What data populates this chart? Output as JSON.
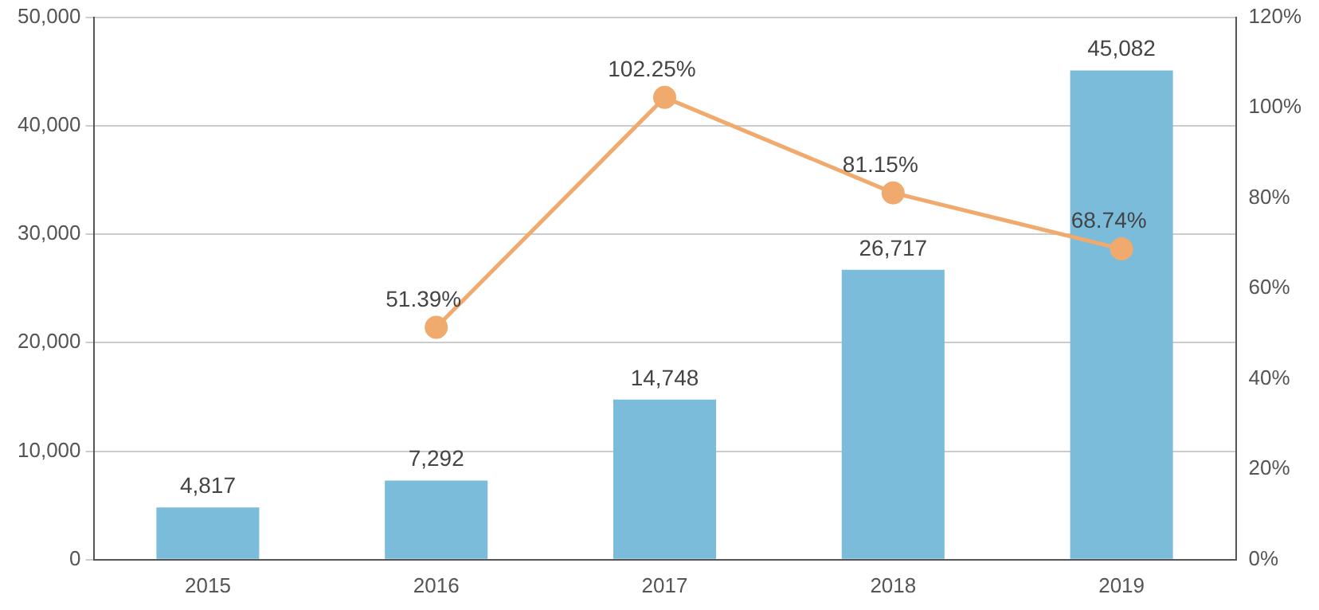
{
  "chart_data": {
    "type": "bar",
    "categories": [
      "2015",
      "2016",
      "2017",
      "2018",
      "2019"
    ],
    "series": [
      {
        "color": "#7bbcdb",
        "values": [
          4817,
          7292,
          14748,
          26717,
          45082
        ],
        "value_labels": [
          "4,817",
          "7,292",
          "14,748",
          "26,717",
          "45,082"
        ]
      },
      {
        "type": "line",
        "axis": "y2",
        "color": "#f0aa6e",
        "values": [
          null,
          51.39,
          102.25,
          81.15,
          68.74
        ],
        "value_labels": [
          null,
          "51.39%",
          "102.25%",
          "81.15%",
          "68.74%"
        ]
      }
    ],
    "ylim": [
      0,
      50000
    ],
    "yticks": [
      {
        "value": 0,
        "label": "0"
      },
      {
        "value": 10000,
        "label": "10,000"
      },
      {
        "value": 20000,
        "label": "20,000"
      },
      {
        "value": 30000,
        "label": "30,000"
      },
      {
        "value": 40000,
        "label": "40,000"
      },
      {
        "value": 50000,
        "label": "50,000"
      }
    ],
    "y2lim": [
      0,
      120
    ],
    "y2ticks": [
      {
        "value": 0,
        "label": "0%"
      },
      {
        "value": 20,
        "label": "20%"
      },
      {
        "value": 40,
        "label": "40%"
      },
      {
        "value": 60,
        "label": "60%"
      },
      {
        "value": 80,
        "label": "80%"
      },
      {
        "value": 100,
        "label": "100%"
      },
      {
        "value": 120,
        "label": "120%"
      }
    ],
    "grid": "y",
    "legend": false,
    "marker": "circle"
  }
}
